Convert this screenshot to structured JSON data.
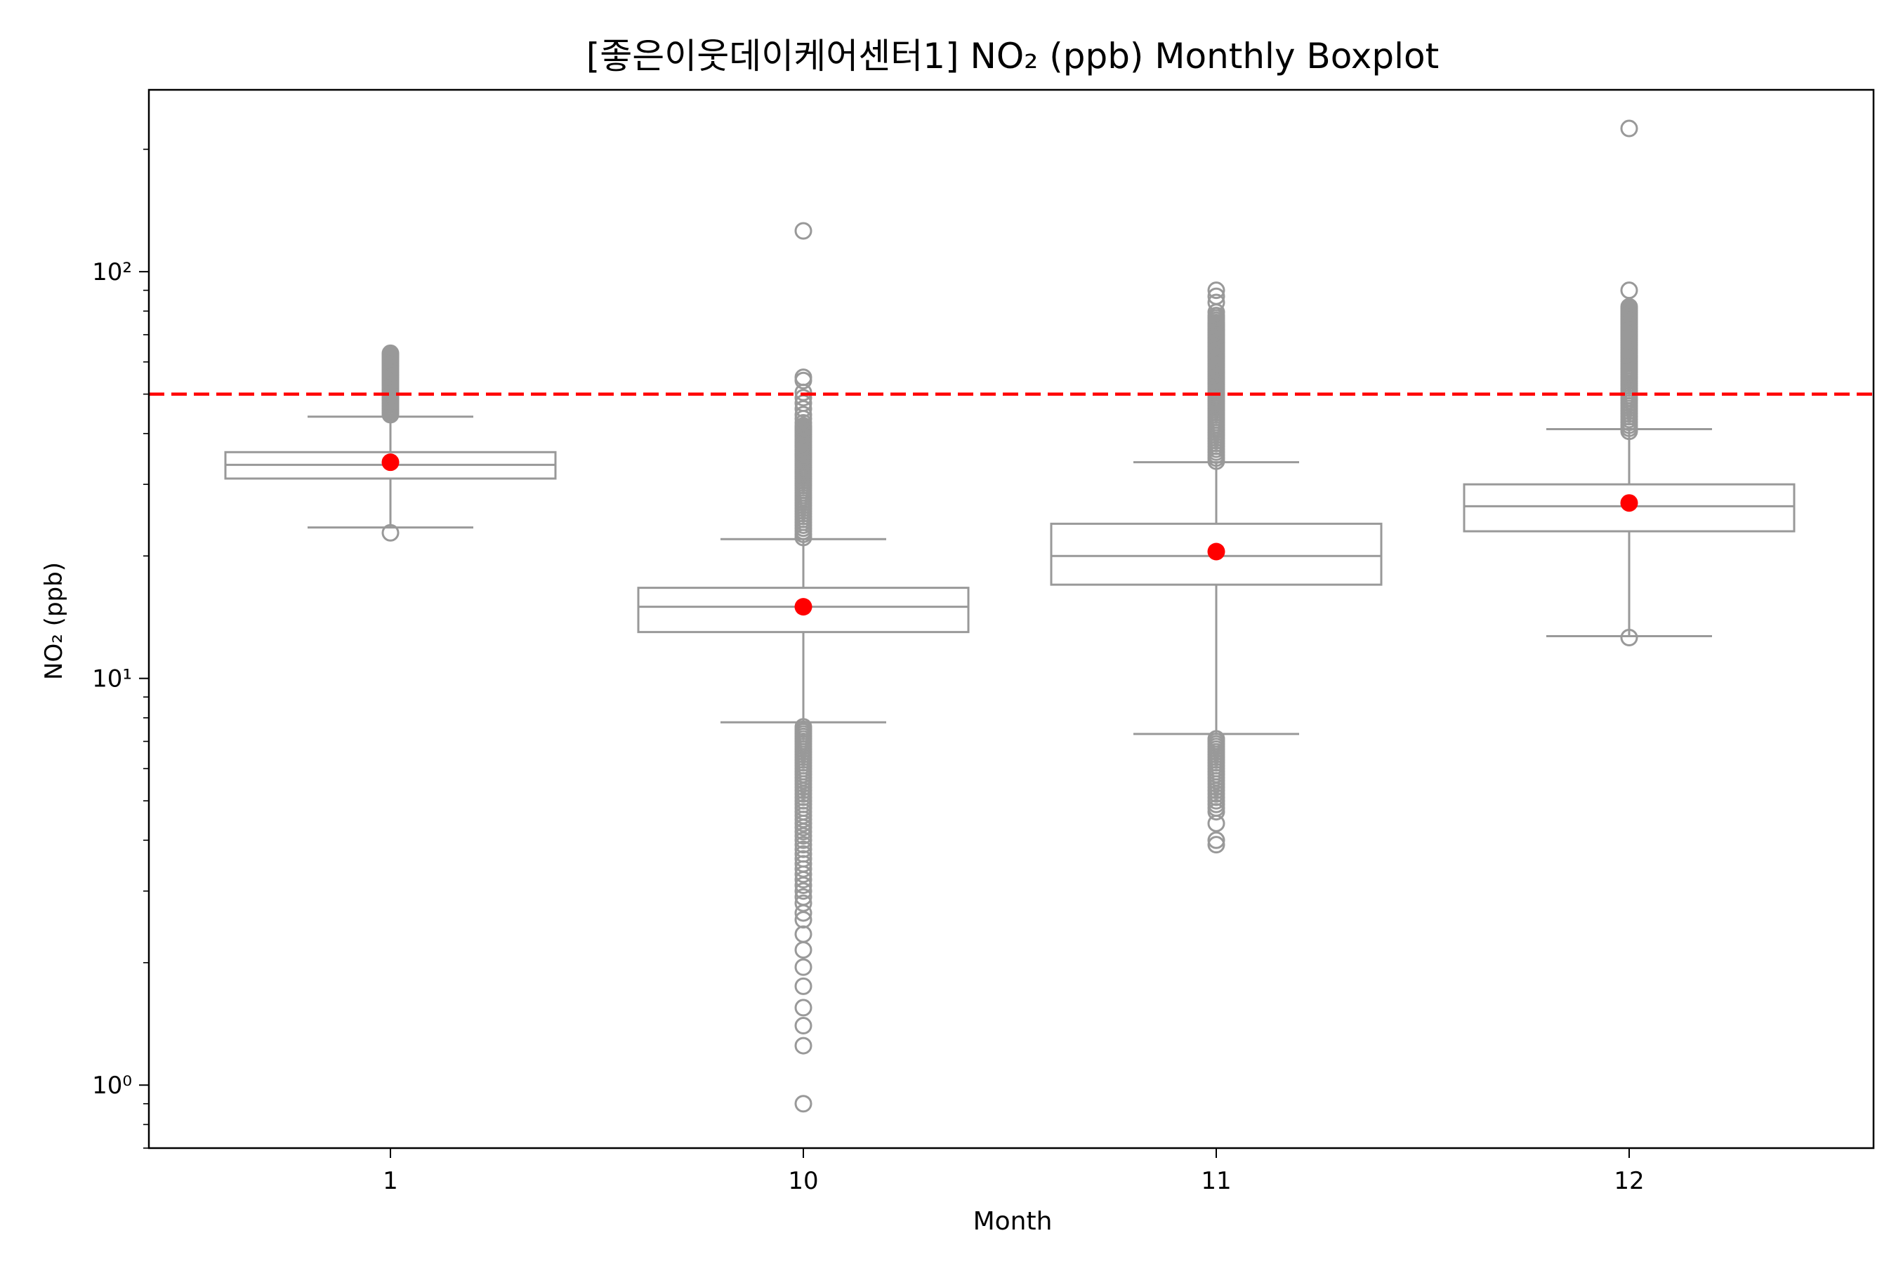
{
  "chart_data": {
    "type": "boxplot",
    "title": "[좋은이웃데이케어센터1] NO₂ (ppb) Monthly Boxplot",
    "xlabel": "Month",
    "ylabel": "NO₂ (ppb)",
    "yscale": "log",
    "ylim": [
      0.7,
      280
    ],
    "y_ticks": [
      {
        "value": 1,
        "label": "10⁰"
      },
      {
        "value": 10,
        "label": "10¹"
      },
      {
        "value": 100,
        "label": "10²"
      }
    ],
    "categories": [
      "1",
      "10",
      "11",
      "12"
    ],
    "threshold": {
      "value": 50,
      "color": "#ff0000",
      "style": "dashed"
    },
    "colors": {
      "box": "#999999",
      "mean": "#ff0000",
      "threshold": "#ff0000"
    },
    "boxes": [
      {
        "month": "1",
        "q1": 31.0,
        "median": 33.5,
        "q3": 36.0,
        "whisker_low": 23.5,
        "whisker_high": 44.0,
        "mean": 34.0,
        "outliers": [
          22.8,
          44.5,
          45.0,
          45.5,
          46.0,
          46.5,
          47.0,
          47.5,
          48.0,
          48.5,
          49.0,
          49.5,
          50.0,
          50.5,
          51.0,
          51.5,
          52.0,
          52.5,
          53.0,
          53.5,
          54.0,
          54.5,
          55.0,
          55.5,
          56.0,
          56.5,
          57.0,
          57.5,
          58.0,
          58.5,
          59.0,
          59.5,
          60.0,
          60.5,
          61.0,
          61.5,
          62.0,
          62.5,
          63.0
        ]
      },
      {
        "month": "10",
        "q1": 13.0,
        "median": 15.0,
        "q3": 16.7,
        "whisker_low": 7.8,
        "whisker_high": 22.0,
        "mean": 15.0,
        "outliers": [
          0.9,
          1.25,
          1.4,
          1.55,
          1.75,
          1.95,
          2.15,
          2.35,
          2.55,
          2.65,
          2.8,
          2.9,
          3.0,
          3.1,
          3.2,
          3.3,
          3.4,
          3.5,
          3.6,
          3.7,
          3.8,
          3.9,
          4.0,
          4.1,
          4.2,
          4.3,
          4.4,
          4.5,
          4.6,
          4.7,
          4.8,
          4.9,
          5.0,
          5.1,
          5.2,
          5.3,
          5.4,
          5.5,
          5.6,
          5.7,
          5.8,
          5.9,
          6.0,
          6.1,
          6.2,
          6.3,
          6.4,
          6.5,
          6.6,
          6.7,
          6.8,
          6.9,
          7.0,
          7.1,
          7.2,
          7.3,
          7.4,
          7.5,
          7.6,
          22.2,
          22.6,
          23.0,
          23.4,
          23.8,
          24.2,
          24.6,
          25.0,
          25.4,
          25.8,
          26.2,
          26.6,
          27.0,
          27.4,
          27.8,
          28.2,
          28.6,
          29.0,
          29.4,
          29.8,
          30.2,
          30.6,
          31.0,
          31.4,
          31.8,
          32.2,
          32.6,
          33.0,
          33.4,
          33.8,
          34.2,
          34.6,
          35.0,
          35.4,
          35.8,
          36.2,
          36.6,
          37.0,
          37.4,
          37.8,
          38.2,
          38.6,
          39.0,
          39.4,
          39.8,
          40.2,
          40.6,
          41.0,
          41.4,
          41.8,
          42.5,
          43.5,
          44.5,
          46.0,
          47.5,
          49.0,
          50.5,
          54.0,
          55.0,
          126.0
        ]
      },
      {
        "month": "11",
        "q1": 17.0,
        "median": 20.0,
        "q3": 24.0,
        "whisker_low": 7.3,
        "whisker_high": 34.0,
        "mean": 20.5,
        "outliers": [
          3.9,
          4.0,
          4.4,
          4.7,
          4.8,
          4.9,
          5.0,
          5.1,
          5.2,
          5.3,
          5.4,
          5.5,
          5.6,
          5.7,
          5.8,
          5.9,
          6.0,
          6.1,
          6.2,
          6.3,
          6.4,
          6.5,
          6.6,
          6.7,
          6.8,
          6.9,
          7.0,
          7.1,
          34.2,
          34.8,
          35.4,
          36.0,
          36.6,
          37.2,
          37.8,
          38.4,
          39.0,
          39.6,
          40.2,
          40.8,
          41.4,
          42.0,
          42.6,
          43.2,
          43.8,
          44.4,
          45.0,
          45.6,
          46.2,
          46.8,
          47.4,
          48.0,
          48.6,
          49.2,
          49.8,
          50.4,
          51.0,
          51.6,
          52.2,
          52.8,
          53.4,
          54.0,
          54.6,
          55.2,
          55.8,
          56.4,
          57.0,
          57.6,
          58.2,
          58.8,
          59.4,
          60.0,
          60.6,
          61.2,
          61.8,
          62.4,
          63.0,
          63.6,
          64.2,
          64.8,
          65.4,
          66.0,
          66.6,
          67.2,
          67.8,
          68.4,
          69.0,
          69.6,
          70.2,
          70.8,
          71.4,
          72.0,
          72.6,
          73.2,
          73.8,
          74.4,
          75.0,
          76.0,
          77.0,
          78.0,
          79.5,
          84.0,
          87.0,
          90.0
        ]
      },
      {
        "month": "12",
        "q1": 23.0,
        "median": 26.5,
        "q3": 30.0,
        "whisker_low": 12.7,
        "whisker_high": 41.0,
        "mean": 27.0,
        "outliers": [
          12.6,
          40.5,
          41.2,
          41.9,
          42.6,
          43.3,
          44.0,
          44.7,
          45.4,
          46.1,
          46.8,
          47.5,
          48.2,
          48.9,
          49.6,
          50.3,
          51.0,
          51.7,
          52.4,
          53.1,
          53.8,
          54.5,
          55.2,
          55.9,
          56.6,
          57.3,
          58.0,
          58.7,
          59.4,
          60.1,
          60.8,
          61.5,
          62.2,
          62.9,
          63.6,
          64.3,
          65.0,
          65.7,
          66.4,
          67.1,
          67.8,
          68.5,
          69.2,
          69.9,
          70.6,
          71.3,
          72.0,
          72.7,
          73.4,
          74.1,
          74.8,
          75.5,
          76.2,
          76.9,
          77.6,
          78.3,
          79.0,
          79.7,
          80.4,
          81.1,
          82.0,
          90.0,
          225.0
        ]
      }
    ]
  }
}
